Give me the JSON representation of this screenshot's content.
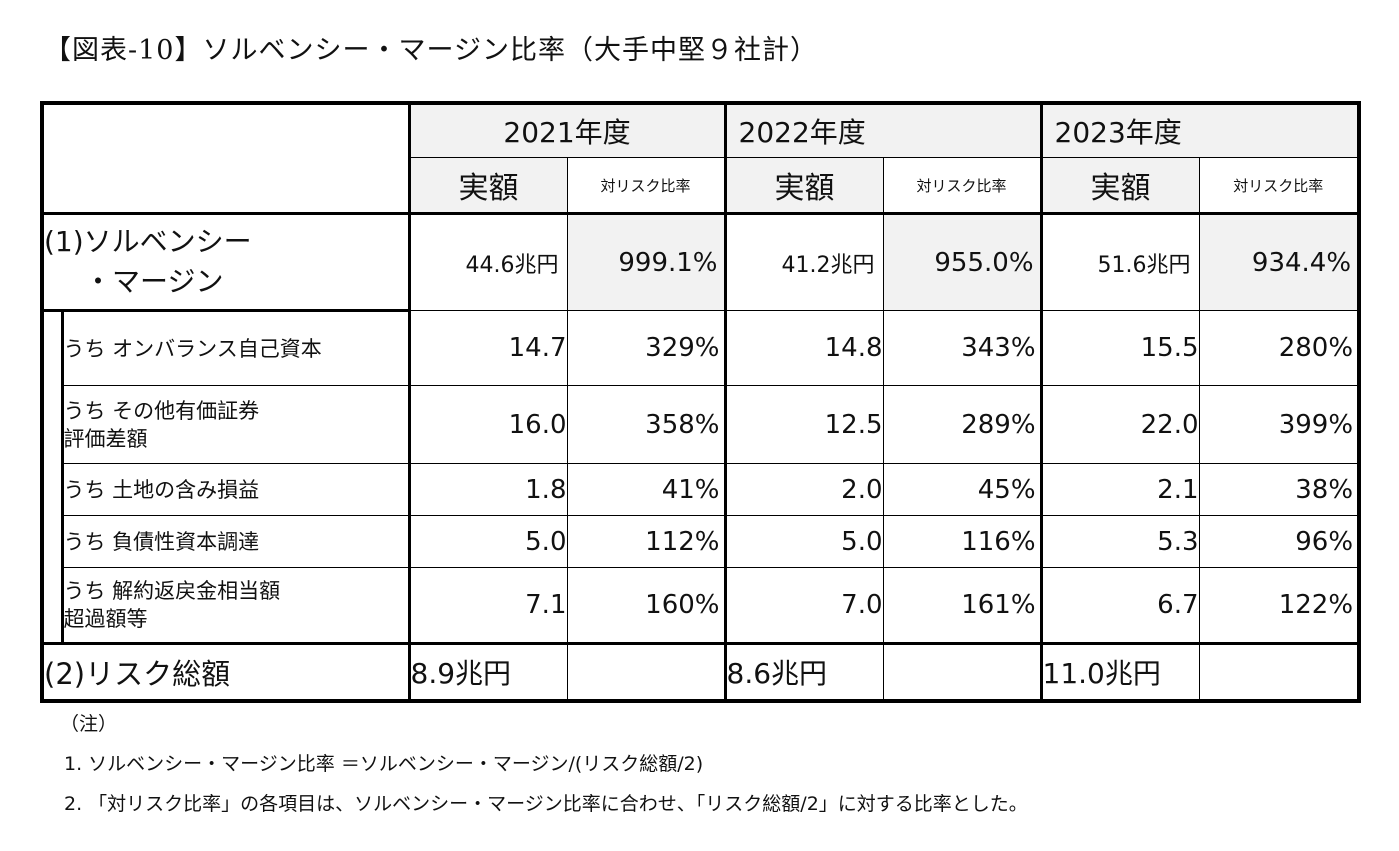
{
  "title": "【図表-10】ソルベンシー・マージン比率（大手中堅９社計）",
  "header": {
    "years": [
      "2021年度",
      "2022年度",
      "2023年度"
    ],
    "amount_label": "実額",
    "ratio_label": "対リスク比率"
  },
  "solvency_margin": {
    "label_line1": "(1)ソルベンシー",
    "label_line2": "・マージン",
    "values": [
      {
        "amount": "44.6兆円",
        "ratio": "999.1%"
      },
      {
        "amount": "41.2兆円",
        "ratio": "955.0%"
      },
      {
        "amount": "51.6兆円",
        "ratio": "934.4%"
      }
    ]
  },
  "rows": [
    {
      "label_line1": "うち オンバランス自己資本",
      "label_line2": "",
      "values": [
        {
          "amount": "14.7",
          "ratio": "329%"
        },
        {
          "amount": "14.8",
          "ratio": "343%"
        },
        {
          "amount": "15.5",
          "ratio": "280%"
        }
      ]
    },
    {
      "label_line1": "うち その他有価証券",
      "label_line2": "評価差額",
      "values": [
        {
          "amount": "16.0",
          "ratio": "358%"
        },
        {
          "amount": "12.5",
          "ratio": "289%"
        },
        {
          "amount": "22.0",
          "ratio": "399%"
        }
      ]
    },
    {
      "label_line1": "うち 土地の含み損益",
      "label_line2": "",
      "values": [
        {
          "amount": "1.8",
          "ratio": "41%"
        },
        {
          "amount": "2.0",
          "ratio": "45%"
        },
        {
          "amount": "2.1",
          "ratio": "38%"
        }
      ]
    },
    {
      "label_line1": "うち 負債性資本調達",
      "label_line2": "",
      "values": [
        {
          "amount": "5.0",
          "ratio": "112%"
        },
        {
          "amount": "5.0",
          "ratio": "116%"
        },
        {
          "amount": "5.3",
          "ratio": "96%"
        }
      ]
    },
    {
      "label_line1": "うち 解約返戻金相当額",
      "label_line2": "超過額等",
      "values": [
        {
          "amount": "7.1",
          "ratio": "160%"
        },
        {
          "amount": "7.0",
          "ratio": "161%"
        },
        {
          "amount": "6.7",
          "ratio": "122%"
        }
      ]
    }
  ],
  "risk_total": {
    "label": "(2)リスク総額",
    "amounts": [
      "8.9兆円",
      "8.6兆円",
      "11.0兆円"
    ]
  },
  "notes": {
    "heading": "（注）",
    "items": [
      "1.  ソルベンシー・マージン比率 ＝ソルベンシー・マージン/(リスク総額/2)",
      "2. 「対リスク比率」の各項目は、ソルベンシー・マージン比率に合わせ、「リスク総額/2」に対する比率とした。"
    ]
  }
}
